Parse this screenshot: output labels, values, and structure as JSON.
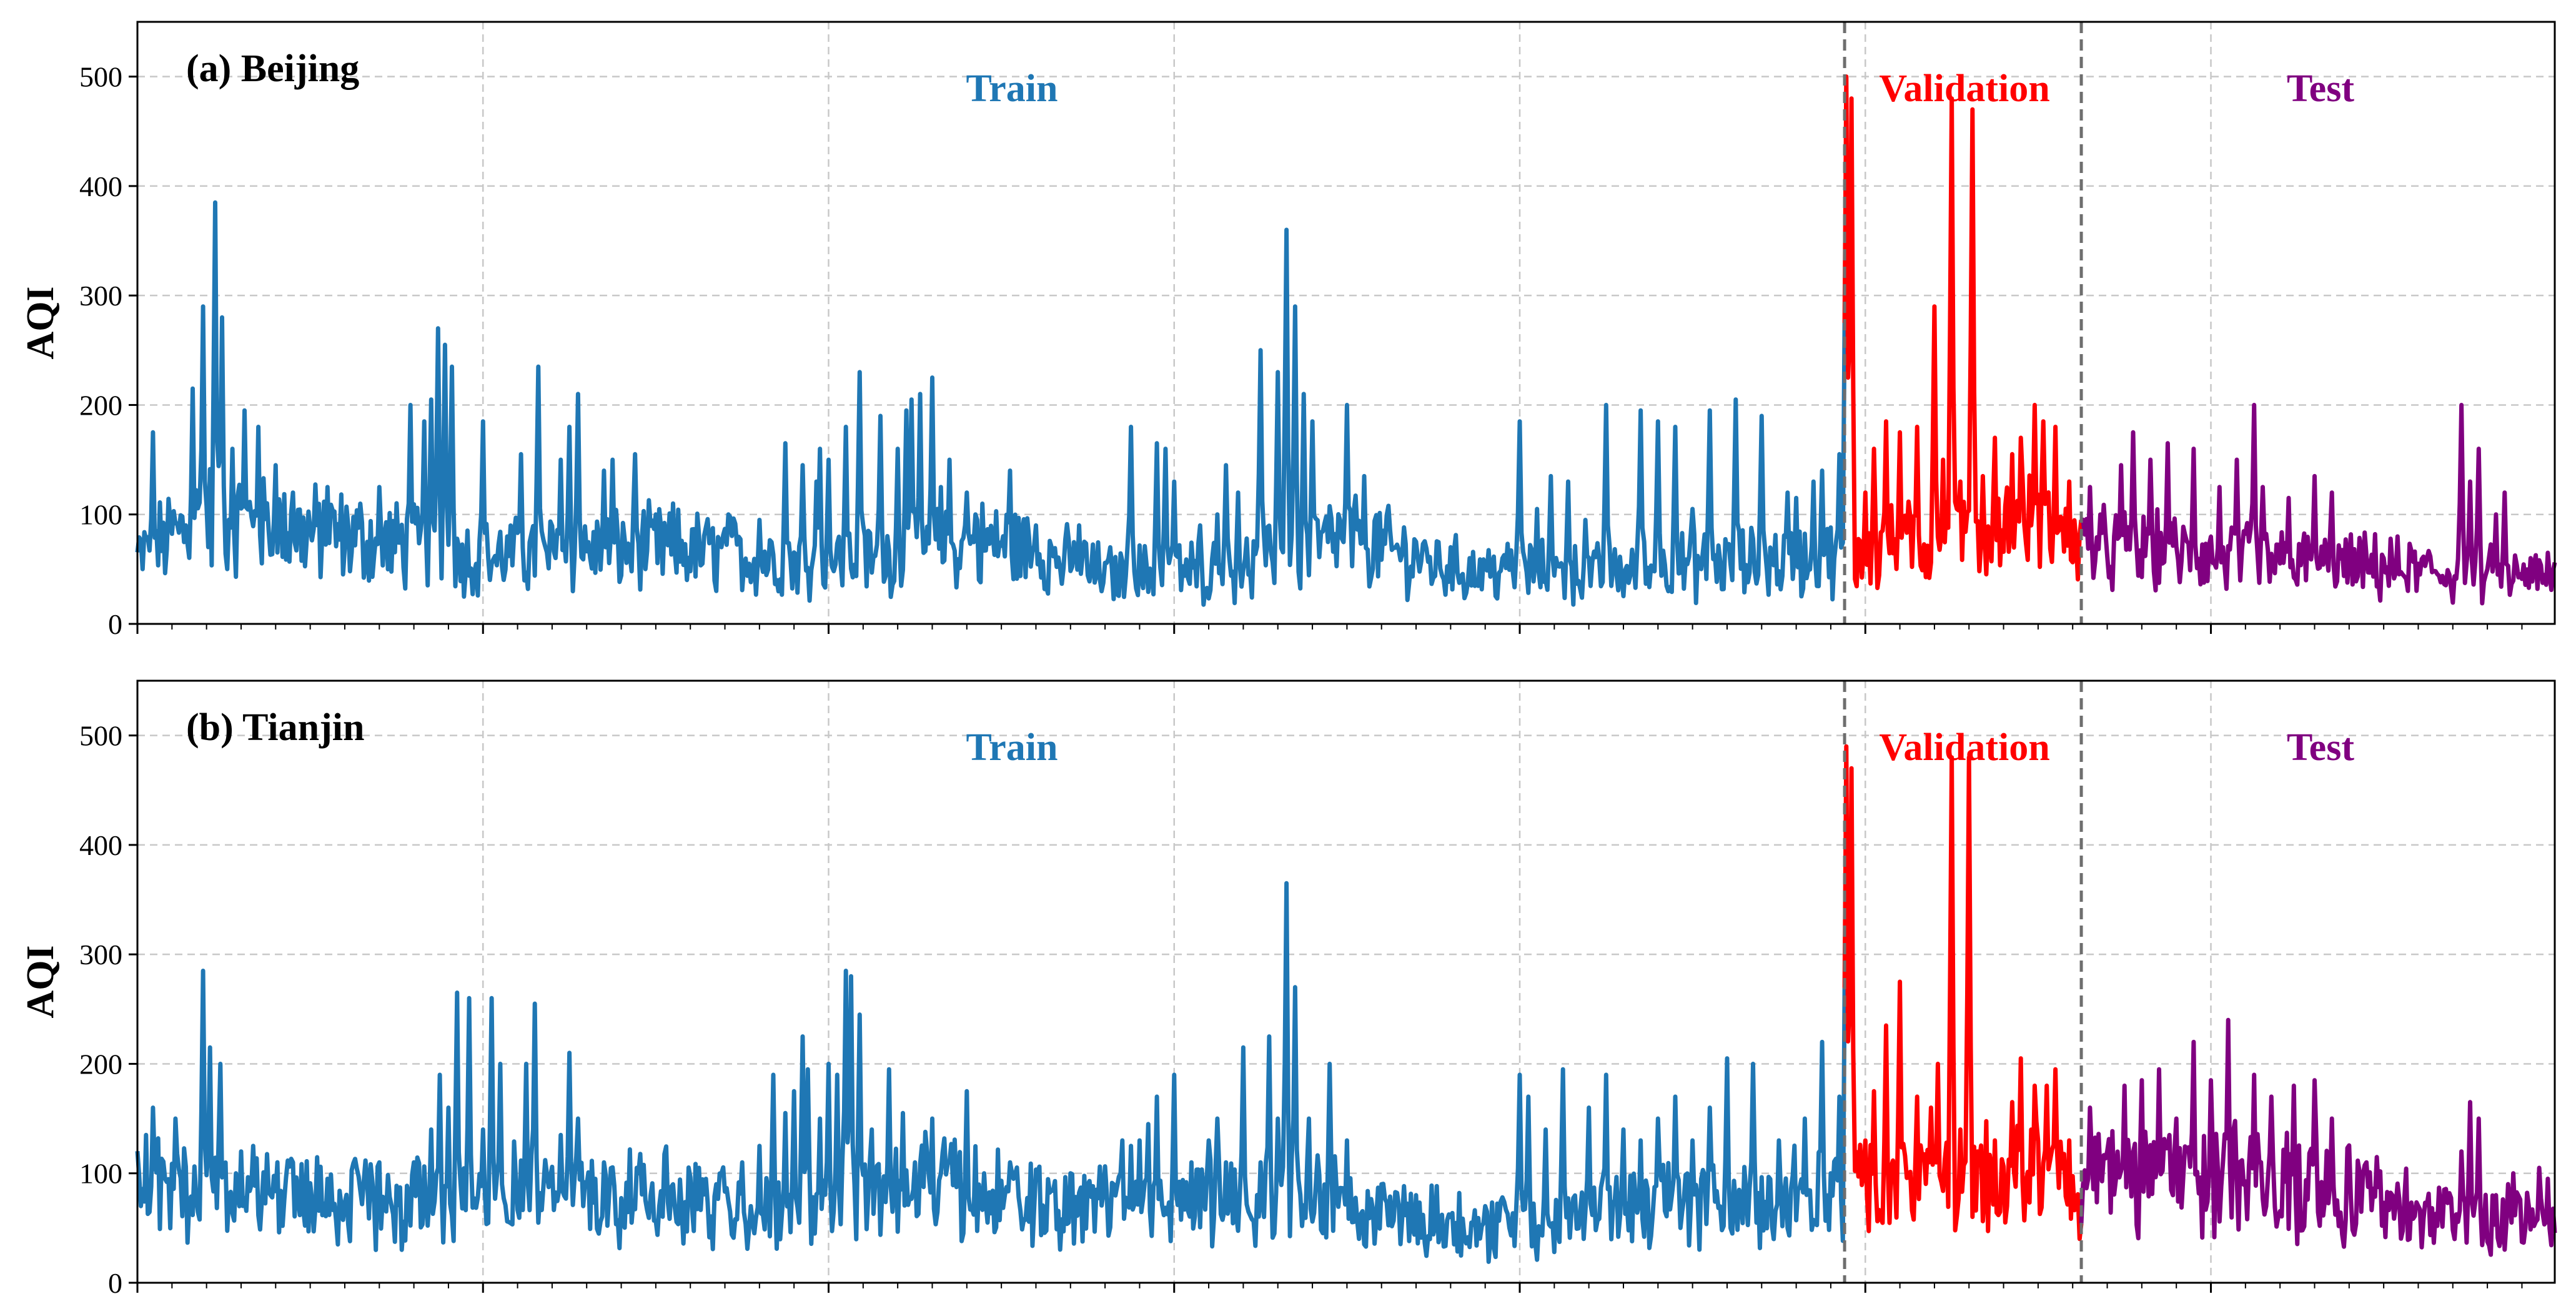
{
  "chart_data": [
    {
      "type": "line",
      "panel_label": "(a) Beijing",
      "ylabel": "AQI",
      "ylim": [
        0,
        550
      ],
      "yticks": [
        0,
        100,
        200,
        300,
        400,
        500
      ],
      "x_count": 1400,
      "grid": true,
      "split_indices": [
        988,
        1125
      ],
      "segments": [
        {
          "name": "Train",
          "color": "#1f77b4",
          "start": 0,
          "end": 988
        },
        {
          "name": "Validation",
          "color": "#ff0000",
          "start": 988,
          "end": 1125
        },
        {
          "name": "Test",
          "color": "#800080",
          "start": 1125,
          "end": 1400
        }
      ],
      "baseline": [
        [
          0,
          60
        ],
        [
          40,
          100
        ],
        [
          60,
          90
        ],
        [
          120,
          80
        ],
        [
          200,
          60
        ],
        [
          300,
          70
        ],
        [
          400,
          55
        ],
        [
          500,
          75
        ],
        [
          560,
          45
        ],
        [
          640,
          50
        ],
        [
          700,
          80
        ],
        [
          760,
          50
        ],
        [
          840,
          45
        ],
        [
          920,
          55
        ],
        [
          988,
          60
        ],
        [
          1050,
          80
        ],
        [
          1100,
          90
        ],
        [
          1125,
          70
        ],
        [
          1250,
          55
        ],
        [
          1350,
          45
        ],
        [
          1400,
          40
        ]
      ],
      "peaks": [
        [
          9,
          175
        ],
        [
          28,
          90
        ],
        [
          32,
          215
        ],
        [
          38,
          290
        ],
        [
          45,
          385
        ],
        [
          49,
          280
        ],
        [
          55,
          160
        ],
        [
          62,
          195
        ],
        [
          70,
          180
        ],
        [
          80,
          145
        ],
        [
          90,
          120
        ],
        [
          110,
          125
        ],
        [
          140,
          125
        ],
        [
          158,
          200
        ],
        [
          166,
          185
        ],
        [
          170,
          205
        ],
        [
          174,
          270
        ],
        [
          178,
          255
        ],
        [
          182,
          235
        ],
        [
          200,
          185
        ],
        [
          222,
          155
        ],
        [
          232,
          235
        ],
        [
          245,
          150
        ],
        [
          250,
          180
        ],
        [
          255,
          210
        ],
        [
          270,
          140
        ],
        [
          275,
          150
        ],
        [
          288,
          155
        ],
        [
          310,
          110
        ],
        [
          342,
          100
        ],
        [
          360,
          95
        ],
        [
          375,
          165
        ],
        [
          385,
          145
        ],
        [
          393,
          130
        ],
        [
          395,
          160
        ],
        [
          400,
          150
        ],
        [
          410,
          180
        ],
        [
          418,
          230
        ],
        [
          430,
          190
        ],
        [
          440,
          160
        ],
        [
          445,
          195
        ],
        [
          448,
          205
        ],
        [
          453,
          210
        ],
        [
          460,
          225
        ],
        [
          465,
          125
        ],
        [
          470,
          150
        ],
        [
          480,
          120
        ],
        [
          485,
          100
        ],
        [
          505,
          140
        ],
        [
          520,
          90
        ],
        [
          545,
          90
        ],
        [
          548,
          75
        ],
        [
          575,
          180
        ],
        [
          590,
          165
        ],
        [
          595,
          160
        ],
        [
          600,
          130
        ],
        [
          615,
          90
        ],
        [
          625,
          100
        ],
        [
          630,
          145
        ],
        [
          637,
          120
        ],
        [
          650,
          250
        ],
        [
          660,
          230
        ],
        [
          665,
          360
        ],
        [
          670,
          290
        ],
        [
          675,
          210
        ],
        [
          680,
          185
        ],
        [
          700,
          200
        ],
        [
          710,
          135
        ],
        [
          740,
          75
        ],
        [
          760,
          70
        ],
        [
          780,
          55
        ],
        [
          790,
          60
        ],
        [
          800,
          185
        ],
        [
          810,
          105
        ],
        [
          818,
          135
        ],
        [
          828,
          130
        ],
        [
          838,
          95
        ],
        [
          850,
          200
        ],
        [
          870,
          195
        ],
        [
          880,
          185
        ],
        [
          890,
          180
        ],
        [
          900,
          105
        ],
        [
          910,
          195
        ],
        [
          925,
          205
        ],
        [
          940,
          190
        ],
        [
          955,
          120
        ],
        [
          960,
          115
        ],
        [
          970,
          130
        ],
        [
          975,
          140
        ],
        [
          985,
          155
        ],
        [
          989,
          500
        ],
        [
          992,
          480
        ],
        [
          1000,
          120
        ],
        [
          1005,
          160
        ],
        [
          1012,
          185
        ],
        [
          1020,
          175
        ],
        [
          1030,
          180
        ],
        [
          1040,
          290
        ],
        [
          1045,
          150
        ],
        [
          1050,
          480
        ],
        [
          1055,
          130
        ],
        [
          1062,
          470
        ],
        [
          1068,
          135
        ],
        [
          1075,
          170
        ],
        [
          1085,
          155
        ],
        [
          1090,
          170
        ],
        [
          1098,
          200
        ],
        [
          1103,
          185
        ],
        [
          1110,
          180
        ],
        [
          1118,
          130
        ],
        [
          1130,
          125
        ],
        [
          1148,
          145
        ],
        [
          1155,
          175
        ],
        [
          1165,
          150
        ],
        [
          1175,
          165
        ],
        [
          1190,
          160
        ],
        [
          1205,
          125
        ],
        [
          1215,
          150
        ],
        [
          1225,
          200
        ],
        [
          1230,
          125
        ],
        [
          1245,
          115
        ],
        [
          1260,
          135
        ],
        [
          1270,
          120
        ],
        [
          1300,
          60
        ],
        [
          1320,
          55
        ],
        [
          1345,
          200
        ],
        [
          1350,
          130
        ],
        [
          1355,
          160
        ],
        [
          1365,
          100
        ],
        [
          1370,
          120
        ],
        [
          1385,
          60
        ],
        [
          1395,
          65
        ]
      ]
    },
    {
      "type": "line",
      "panel_label": "(b) Tianjin",
      "ylabel": "AQI",
      "ylim": [
        0,
        550
      ],
      "yticks": [
        0,
        100,
        200,
        300,
        400,
        500
      ],
      "x_count": 1400,
      "grid": true,
      "split_indices": [
        988,
        1125
      ],
      "segments": [
        {
          "name": "Train",
          "color": "#1f77b4",
          "start": 0,
          "end": 988
        },
        {
          "name": "Validation",
          "color": "#ff0000",
          "start": 988,
          "end": 1125
        },
        {
          "name": "Test",
          "color": "#800080",
          "start": 1125,
          "end": 1400
        }
      ],
      "baseline": [
        [
          0,
          80
        ],
        [
          40,
          90
        ],
        [
          100,
          80
        ],
        [
          160,
          70
        ],
        [
          220,
          85
        ],
        [
          300,
          80
        ],
        [
          380,
          60
        ],
        [
          440,
          90
        ],
        [
          470,
          85
        ],
        [
          520,
          70
        ],
        [
          600,
          70
        ],
        [
          660,
          85
        ],
        [
          740,
          60
        ],
        [
          800,
          50
        ],
        [
          860,
          70
        ],
        [
          920,
          75
        ],
        [
          988,
          80
        ],
        [
          1050,
          90
        ],
        [
          1100,
          100
        ],
        [
          1125,
          90
        ],
        [
          1200,
          95
        ],
        [
          1280,
          80
        ],
        [
          1340,
          60
        ],
        [
          1400,
          55
        ]
      ],
      "peaks": [
        [
          5,
          135
        ],
        [
          9,
          160
        ],
        [
          22,
          150
        ],
        [
          38,
          285
        ],
        [
          42,
          215
        ],
        [
          48,
          200
        ],
        [
          60,
          120
        ],
        [
          90,
          110
        ],
        [
          110,
          95
        ],
        [
          140,
          110
        ],
        [
          160,
          110
        ],
        [
          170,
          140
        ],
        [
          175,
          190
        ],
        [
          180,
          160
        ],
        [
          185,
          265
        ],
        [
          192,
          260
        ],
        [
          200,
          140
        ],
        [
          205,
          260
        ],
        [
          210,
          200
        ],
        [
          225,
          200
        ],
        [
          230,
          255
        ],
        [
          245,
          135
        ],
        [
          250,
          210
        ],
        [
          255,
          150
        ],
        [
          270,
          110
        ],
        [
          290,
          100
        ],
        [
          310,
          90
        ],
        [
          325,
          105
        ],
        [
          335,
          90
        ],
        [
          350,
          110
        ],
        [
          360,
          125
        ],
        [
          368,
          190
        ],
        [
          375,
          155
        ],
        [
          380,
          175
        ],
        [
          385,
          225
        ],
        [
          388,
          195
        ],
        [
          395,
          150
        ],
        [
          400,
          200
        ],
        [
          405,
          190
        ],
        [
          410,
          285
        ],
        [
          413,
          280
        ],
        [
          418,
          245
        ],
        [
          425,
          140
        ],
        [
          435,
          195
        ],
        [
          443,
          155
        ],
        [
          450,
          110
        ],
        [
          460,
          150
        ],
        [
          470,
          110
        ],
        [
          480,
          175
        ],
        [
          490,
          100
        ],
        [
          505,
          110
        ],
        [
          540,
          100
        ],
        [
          550,
          90
        ],
        [
          555,
          85
        ],
        [
          565,
          90
        ],
        [
          570,
          130
        ],
        [
          575,
          125
        ],
        [
          580,
          130
        ],
        [
          585,
          145
        ],
        [
          590,
          170
        ],
        [
          600,
          190
        ],
        [
          610,
          110
        ],
        [
          620,
          130
        ],
        [
          625,
          150
        ],
        [
          630,
          110
        ],
        [
          640,
          215
        ],
        [
          650,
          110
        ],
        [
          655,
          225
        ],
        [
          660,
          150
        ],
        [
          665,
          365
        ],
        [
          670,
          270
        ],
        [
          678,
          150
        ],
        [
          690,
          200
        ],
        [
          700,
          130
        ],
        [
          720,
          90
        ],
        [
          740,
          80
        ],
        [
          760,
          60
        ],
        [
          780,
          70
        ],
        [
          800,
          190
        ],
        [
          805,
          170
        ],
        [
          815,
          140
        ],
        [
          825,
          195
        ],
        [
          840,
          160
        ],
        [
          850,
          190
        ],
        [
          860,
          140
        ],
        [
          870,
          130
        ],
        [
          880,
          150
        ],
        [
          890,
          170
        ],
        [
          900,
          130
        ],
        [
          910,
          160
        ],
        [
          920,
          205
        ],
        [
          935,
          200
        ],
        [
          950,
          130
        ],
        [
          965,
          150
        ],
        [
          975,
          220
        ],
        [
          985,
          170
        ],
        [
          989,
          490
        ],
        [
          992,
          470
        ],
        [
          1000,
          130
        ],
        [
          1005,
          175
        ],
        [
          1012,
          235
        ],
        [
          1020,
          275
        ],
        [
          1030,
          170
        ],
        [
          1038,
          160
        ],
        [
          1042,
          200
        ],
        [
          1050,
          480
        ],
        [
          1055,
          140
        ],
        [
          1060,
          480
        ],
        [
          1065,
          120
        ],
        [
          1075,
          130
        ],
        [
          1085,
          165
        ],
        [
          1090,
          205
        ],
        [
          1098,
          180
        ],
        [
          1105,
          180
        ],
        [
          1110,
          195
        ],
        [
          1118,
          130
        ],
        [
          1130,
          160
        ],
        [
          1140,
          120
        ],
        [
          1150,
          180
        ],
        [
          1160,
          185
        ],
        [
          1170,
          195
        ],
        [
          1180,
          150
        ],
        [
          1190,
          220
        ],
        [
          1200,
          185
        ],
        [
          1210,
          240
        ],
        [
          1225,
          190
        ],
        [
          1235,
          170
        ],
        [
          1248,
          180
        ],
        [
          1260,
          185
        ],
        [
          1270,
          150
        ],
        [
          1290,
          110
        ],
        [
          1305,
          80
        ],
        [
          1320,
          70
        ],
        [
          1335,
          85
        ],
        [
          1345,
          120
        ],
        [
          1350,
          165
        ],
        [
          1355,
          150
        ],
        [
          1365,
          80
        ],
        [
          1375,
          100
        ],
        [
          1390,
          105
        ],
        [
          1395,
          95
        ]
      ]
    }
  ]
}
